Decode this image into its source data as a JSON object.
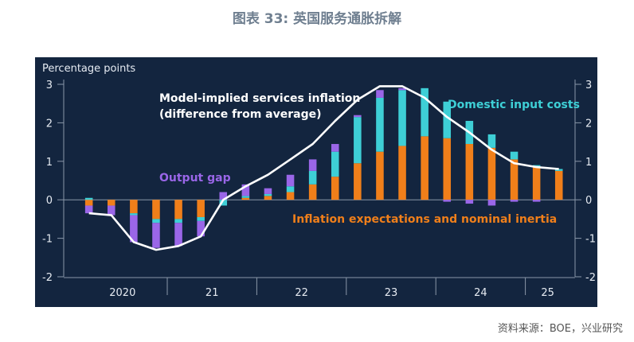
{
  "page": {
    "title": "图表 33: 英国服务通胀拆解",
    "source": "资料来源：BOE，兴业研究"
  },
  "chart_data": {
    "type": "bar",
    "stacked": true,
    "ylabel": "Percentage points",
    "ylim": [
      -2,
      3
    ],
    "yticks": [
      -2,
      -1,
      0,
      1,
      2,
      3
    ],
    "right_axis": true,
    "x_groups": [
      "2020",
      "21",
      "22",
      "23",
      "24",
      "25"
    ],
    "group_sizes": [
      4,
      4,
      4,
      4,
      4,
      2
    ],
    "categories": [
      "2020Q1",
      "2020Q2",
      "2020Q3",
      "2020Q4",
      "2021Q1",
      "2021Q2",
      "2021Q3",
      "2021Q4",
      "2022Q1",
      "2022Q2",
      "2022Q3",
      "2022Q4",
      "2023Q1",
      "2023Q2",
      "2023Q3",
      "2023Q4",
      "2024Q1",
      "2024Q2",
      "2024Q3",
      "2024Q4",
      "2025Q1",
      "2025Q2"
    ],
    "series": [
      {
        "name": "Inflation expectations and nominal inertia",
        "color": "#f07f1a",
        "values": [
          -0.15,
          -0.15,
          -0.35,
          -0.5,
          -0.5,
          -0.45,
          0.0,
          0.05,
          0.1,
          0.2,
          0.4,
          0.6,
          0.95,
          1.25,
          1.4,
          1.65,
          1.6,
          1.45,
          1.35,
          1.05,
          0.85,
          0.75
        ]
      },
      {
        "name": "Domestic input costs",
        "color": "#3ecfd6",
        "values": [
          0.05,
          0.0,
          -0.05,
          -0.1,
          -0.1,
          -0.1,
          -0.15,
          0.05,
          0.05,
          0.15,
          0.35,
          0.65,
          1.2,
          1.4,
          1.45,
          1.25,
          0.95,
          0.6,
          0.35,
          0.2,
          0.05,
          0.05
        ]
      },
      {
        "name": "Output gap",
        "color": "#9a66e8",
        "values": [
          -0.2,
          -0.25,
          -0.7,
          -0.65,
          -0.6,
          -0.4,
          0.2,
          0.3,
          0.15,
          0.3,
          0.3,
          0.2,
          0.05,
          0.2,
          0.05,
          0.0,
          -0.05,
          -0.1,
          -0.15,
          -0.05,
          -0.05,
          0.0
        ]
      }
    ],
    "line": {
      "name": "Model-implied services inflation\n(difference from average)",
      "color": "#ffffff",
      "values": [
        -0.35,
        -0.4,
        -1.1,
        -1.3,
        -1.2,
        -0.95,
        0.0,
        0.35,
        0.65,
        1.05,
        1.45,
        2.05,
        2.6,
        2.95,
        2.95,
        2.65,
        2.15,
        1.75,
        1.3,
        0.95,
        0.85,
        0.8
      ]
    },
    "annotations": [
      {
        "text": "Model-implied services inflation",
        "color": "#ffffff"
      },
      {
        "text": "(difference from average)",
        "color": "#ffffff"
      },
      {
        "text": "Domestic input costs",
        "color": "#3ecfd6"
      },
      {
        "text": "Output gap",
        "color": "#9a66e8"
      },
      {
        "text": "Inflation expectations and nominal inertia",
        "color": "#f07f1a"
      }
    ]
  }
}
